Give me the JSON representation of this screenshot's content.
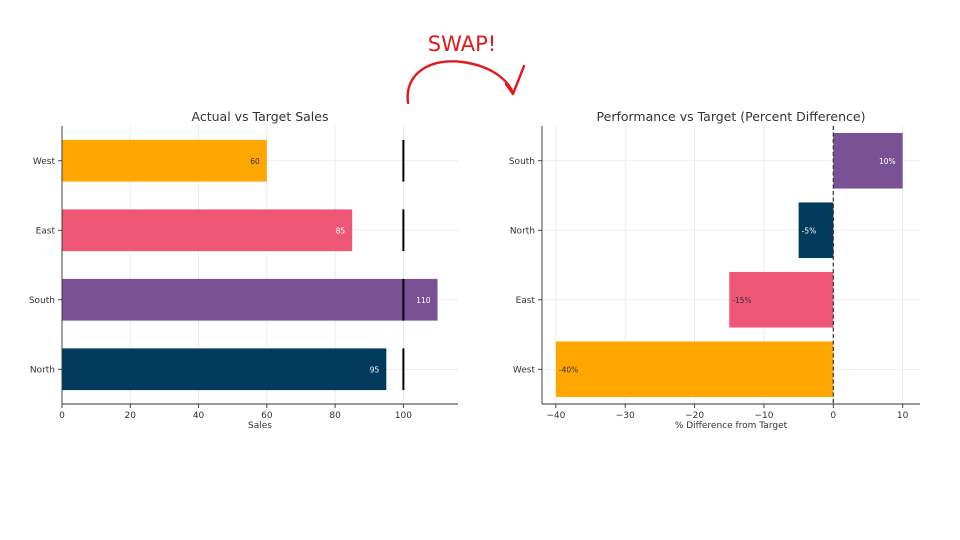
{
  "annotation": {
    "text": "SWAP!",
    "color": "#e31a1c"
  },
  "chart_data": [
    {
      "type": "bar",
      "orientation": "horizontal",
      "title": "Actual vs Target Sales",
      "xlabel": "Sales",
      "ylabel": "",
      "xlim": [
        0,
        116
      ],
      "xticks": [
        0,
        20,
        40,
        60,
        80,
        100
      ],
      "grid": true,
      "target": 100,
      "categories": [
        "North",
        "South",
        "East",
        "West"
      ],
      "values": [
        95,
        110,
        85,
        60
      ],
      "value_labels": [
        "95",
        "110",
        "85",
        "60"
      ],
      "colors": [
        "#003a5c",
        "#7a5195",
        "#ef5675",
        "#ffa600"
      ],
      "label_colors": [
        "#ffffff",
        "#ffffff",
        "#ffffff",
        "#333333"
      ]
    },
    {
      "type": "bar",
      "orientation": "horizontal",
      "title": "Performance vs Target (Percent Difference)",
      "xlabel": "% Difference from Target",
      "ylabel": "",
      "xlim": [
        -42,
        12.5
      ],
      "xticks": [
        -40,
        -30,
        -20,
        -10,
        0,
        10
      ],
      "xtick_labels": [
        "−40",
        "−30",
        "−20",
        "−10",
        "0",
        "10"
      ],
      "grid": true,
      "zero_line": "dashed",
      "categories": [
        "West",
        "East",
        "North",
        "South"
      ],
      "values": [
        -40,
        -15,
        -5,
        10
      ],
      "value_labels": [
        "-40%",
        "-15%",
        "-5%",
        "10%"
      ],
      "colors": [
        "#ffa600",
        "#ef5675",
        "#003a5c",
        "#7a5195"
      ],
      "label_colors": [
        "#333333",
        "#333333",
        "#ffffff",
        "#ffffff"
      ]
    }
  ]
}
